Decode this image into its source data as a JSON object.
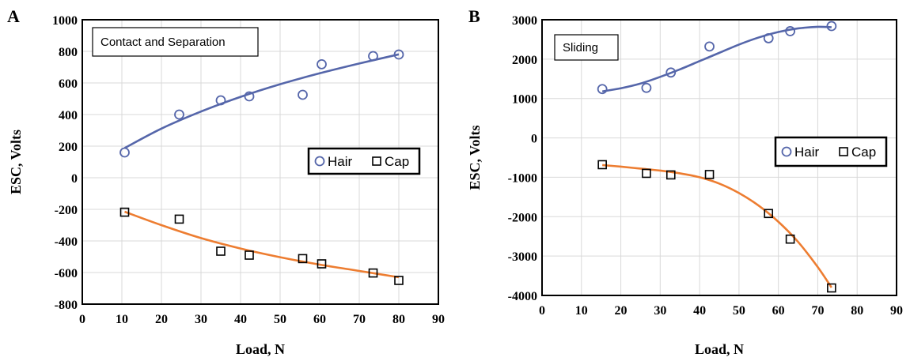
{
  "colors": {
    "hair": "#5566aa",
    "cap": "#000000",
    "hair_fit": "#5566aa",
    "cap_fit": "#ed7d31",
    "grid": "#d9d9d9"
  },
  "chart_data": [
    {
      "type": "scatter",
      "panel_label": "A",
      "annotation": "Contact and Separation",
      "xlabel": "Load, N",
      "ylabel": "ESC, Volts",
      "xlim": [
        0,
        90
      ],
      "ylim": [
        -800,
        1000
      ],
      "xticks": [
        0,
        10,
        20,
        30,
        40,
        50,
        60,
        70,
        80,
        90
      ],
      "yticks": [
        -800,
        -600,
        -400,
        -200,
        0,
        200,
        400,
        600,
        800,
        1000
      ],
      "grid": true,
      "legend": "right",
      "series": [
        {
          "name": "Hair",
          "marker": "circle",
          "x": [
            10.7,
            24.5,
            35,
            42.2,
            55.7,
            60.5,
            73.5,
            80
          ],
          "y": [
            160,
            400,
            490,
            515,
            525,
            718,
            770,
            780
          ],
          "fit": {
            "x": [
              10.7,
              20,
              30,
              40,
              50,
              60,
              70,
              80
            ],
            "y": [
              188,
              311,
              419,
              512,
              592,
              661,
              723,
              781
            ]
          }
        },
        {
          "name": "Cap",
          "marker": "square",
          "x": [
            10.7,
            24.5,
            35,
            42.2,
            55.7,
            60.5,
            73.5,
            80
          ],
          "y": [
            -218,
            -262,
            -465,
            -490,
            -512,
            -545,
            -603,
            -650
          ],
          "fit": {
            "x": [
              10.7,
              20,
              30,
              40,
              50,
              60,
              70,
              80
            ],
            "y": [
              -215,
              -300,
              -382,
              -448,
              -503,
              -550,
              -590,
              -630
            ]
          }
        }
      ]
    },
    {
      "type": "scatter",
      "panel_label": "B",
      "annotation": "Sliding",
      "xlabel": "Load, N",
      "ylabel": "ESC, Volts",
      "xlim": [
        0,
        90
      ],
      "ylim": [
        -4000,
        3000
      ],
      "xticks": [
        0,
        10,
        20,
        30,
        40,
        50,
        60,
        70,
        80,
        90
      ],
      "yticks": [
        -4000,
        -3000,
        -2000,
        -1000,
        0,
        1000,
        2000,
        3000
      ],
      "grid": true,
      "legend": "right",
      "series": [
        {
          "name": "Hair",
          "marker": "circle",
          "x": [
            15.3,
            26.5,
            32.7,
            42.5,
            57.5,
            63,
            73.5
          ],
          "y": [
            1240,
            1270,
            1660,
            2320,
            2530,
            2710,
            2840
          ],
          "fit": {
            "x": [
              15.3,
              20,
              25,
              30,
              35,
              40,
              45,
              50,
              55,
              60,
              65,
              70,
              73.5
            ],
            "y": [
              1180,
              1260,
              1380,
              1550,
              1740,
              1950,
              2160,
              2370,
              2550,
              2690,
              2780,
              2820,
              2810
            ]
          }
        },
        {
          "name": "Cap",
          "marker": "square",
          "x": [
            15.3,
            26.5,
            32.7,
            42.5,
            57.5,
            63,
            73.5
          ],
          "y": [
            -680,
            -900,
            -940,
            -930,
            -1920,
            -2570,
            -3810
          ],
          "fit": {
            "x": [
              15.3,
              20,
              25,
              30,
              35,
              40,
              45,
              50,
              55,
              60,
              65,
              70,
              73.5
            ],
            "y": [
              -690,
              -730,
              -780,
              -830,
              -900,
              -1000,
              -1160,
              -1400,
              -1720,
              -2130,
              -2640,
              -3280,
              -3800
            ]
          }
        }
      ]
    }
  ]
}
